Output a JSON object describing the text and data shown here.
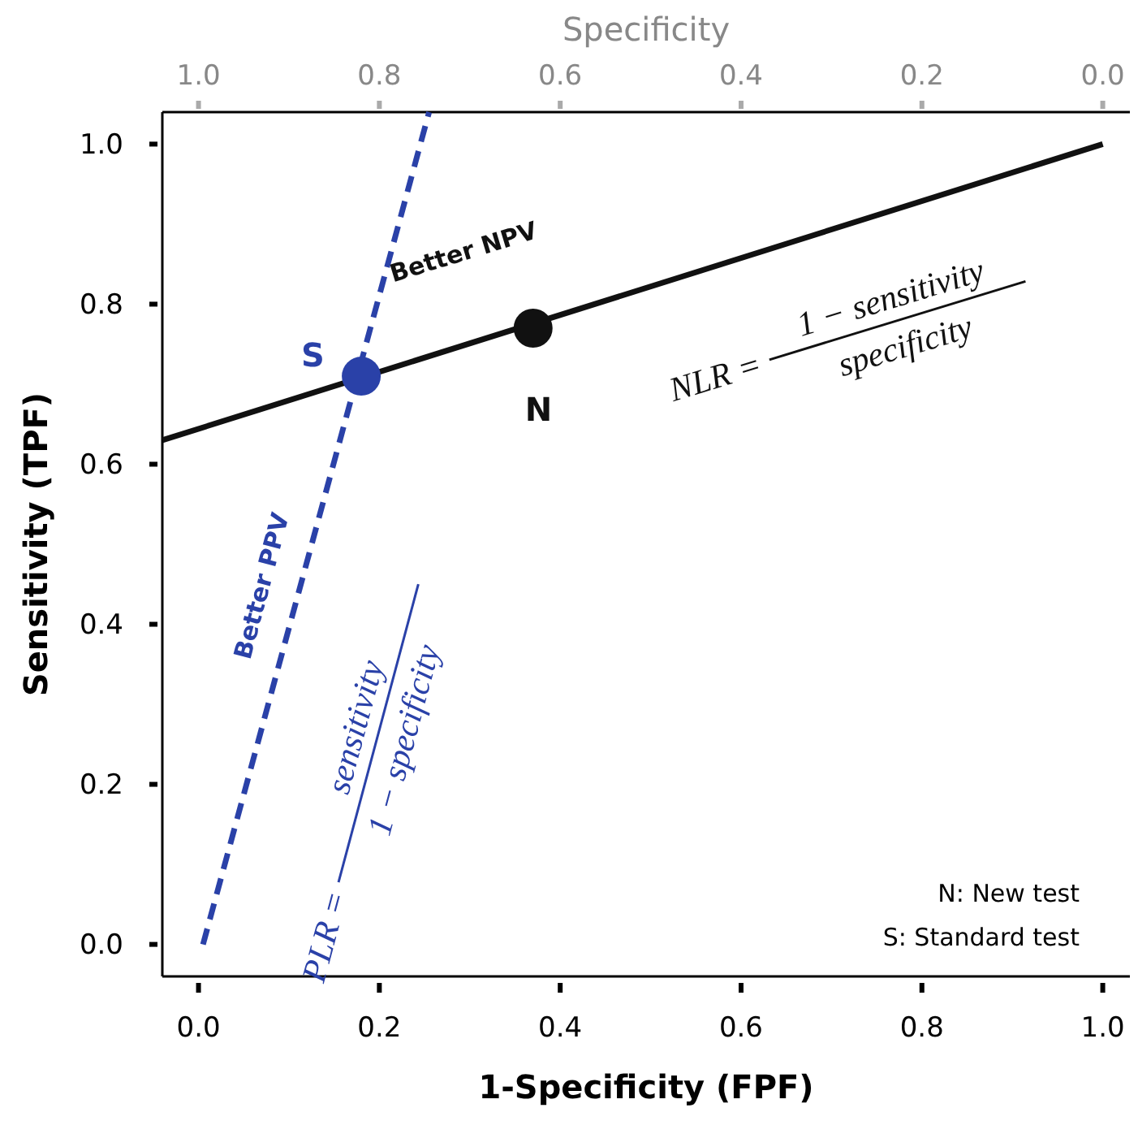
{
  "chart_data": {
    "type": "line",
    "xlabel": "1-Specificity  (FPF)",
    "ylabel": "Sensitivity (TPF)",
    "x2label": "Specificity",
    "xlim": [
      -0.04,
      1.03
    ],
    "xticks": [
      {
        "value": 0,
        "label": "0.0"
      },
      {
        "value": 0.2,
        "label": "0.2"
      },
      {
        "value": 0.4,
        "label": "0.4"
      },
      {
        "value": 0.6,
        "label": "0.6"
      },
      {
        "value": 0.8,
        "label": "0.8"
      },
      {
        "value": 1,
        "label": "1.0"
      }
    ],
    "x2lim": [
      1.04,
      -0.03
    ],
    "x2ticks": [
      {
        "value": 1,
        "label": "1.0"
      },
      {
        "value": 0.8,
        "label": "0.8"
      },
      {
        "value": 0.6,
        "label": "0.6"
      },
      {
        "value": 0.4,
        "label": "0.4"
      },
      {
        "value": 0.2,
        "label": "0.2"
      },
      {
        "value": 0,
        "label": "0.0"
      }
    ],
    "ylim": [
      -0.04,
      1.04
    ],
    "yticks": [
      {
        "value": 0,
        "label": "0.0"
      },
      {
        "value": 0.2,
        "label": "0.2"
      },
      {
        "value": 0.4,
        "label": "0.4"
      },
      {
        "value": 0.6,
        "label": "0.6"
      },
      {
        "value": 0.8,
        "label": "0.8"
      },
      {
        "value": 1,
        "label": "1.0"
      }
    ],
    "grid": false,
    "series": [
      {
        "color": "#111111",
        "x": [
          -0.04,
          1.0
        ],
        "values": [
          0.63,
          1.0
        ],
        "line_style": "solid",
        "marker": "none"
      },
      {
        "color": "#2a41a8",
        "x": [
          0.005,
          0.255
        ],
        "values": [
          0.0,
          1.04
        ],
        "line_style": "dashed",
        "marker": "none"
      },
      {
        "type": "scatter",
        "name": "N",
        "color": "#111111",
        "x": [
          0.37
        ],
        "values": [
          0.77
        ],
        "marker": "circle"
      },
      {
        "type": "scatter",
        "name": "S",
        "color": "#2a41a8",
        "x": [
          0.18
        ],
        "values": [
          0.71
        ],
        "marker": "circle"
      }
    ],
    "annotations": [
      "Better NPV",
      "NLR =",
      "1 − sensitivity",
      "specificity",
      "Better PPV",
      "PLR =",
      "sensitivity",
      "1 − specificity",
      "N: New test",
      "S: Standard test"
    ]
  }
}
